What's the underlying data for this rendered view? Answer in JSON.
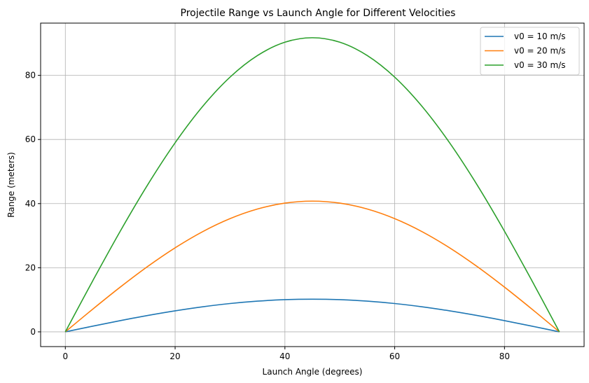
{
  "chart_data": {
    "type": "line",
    "title": "Projectile Range vs Launch Angle for Different Velocities",
    "xlabel": "Launch Angle (degrees)",
    "ylabel": "Range (meters)",
    "xlim": [
      -4.5,
      94.5
    ],
    "ylim": [
      -4.6,
      96.3
    ],
    "xticks": [
      0,
      20,
      40,
      60,
      80
    ],
    "yticks": [
      0,
      20,
      40,
      60,
      80
    ],
    "grid": true,
    "legend_position": "top-right",
    "x": [
      0,
      5,
      10,
      15,
      20,
      25,
      30,
      35,
      40,
      45,
      50,
      55,
      60,
      65,
      70,
      75,
      80,
      85,
      90
    ],
    "series": [
      {
        "name": "v0 = 10 m/s",
        "color": "#1f77b4",
        "values": [
          0,
          1.77,
          3.49,
          5.1,
          6.55,
          7.81,
          8.83,
          9.58,
          10.04,
          10.19,
          10.04,
          9.58,
          8.83,
          7.81,
          6.55,
          5.1,
          3.49,
          1.77,
          0
        ]
      },
      {
        "name": "v0 = 20 m/s",
        "color": "#ff7f0e",
        "values": [
          0,
          7.09,
          13.95,
          20.39,
          26.21,
          31.24,
          35.31,
          38.31,
          40.15,
          40.77,
          40.15,
          38.31,
          35.31,
          31.24,
          26.21,
          20.39,
          13.95,
          7.09,
          0
        ]
      },
      {
        "name": "v0 = 30 m/s",
        "color": "#2ca02c",
        "values": [
          0,
          15.94,
          31.39,
          45.87,
          58.97,
          70.28,
          79.45,
          86.19,
          90.34,
          91.74,
          90.34,
          86.19,
          79.45,
          70.28,
          58.97,
          45.87,
          31.39,
          15.94,
          0
        ]
      }
    ]
  }
}
